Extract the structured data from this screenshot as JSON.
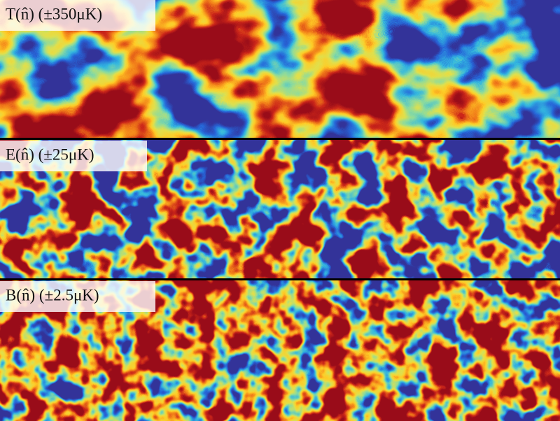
{
  "panels": [
    {
      "label": "T(n̂) (±350μK)"
    },
    {
      "label": "E(n̂) (±25μK)"
    },
    {
      "label": "B(n̂) (±2.5μK)"
    }
  ]
}
